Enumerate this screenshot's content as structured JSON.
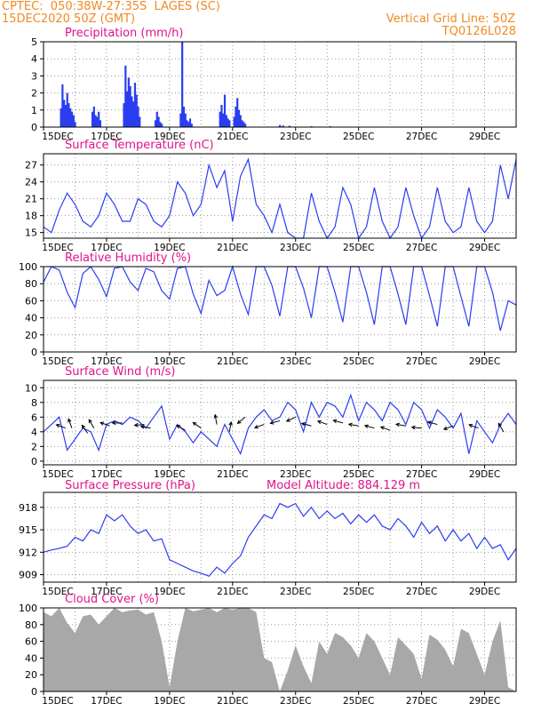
{
  "header": {
    "line1_left": "CPTEC:  050:38W-27:35S  LAGES (SC)",
    "line2_left": "15DEC2020 50Z (GMT)",
    "line1_right": "Vertical Grid Line: 50Z",
    "line2_right": "TQ0126L028"
  },
  "colors": {
    "header": "#f08a24",
    "title": "#e0138c",
    "line": "#2a3ef0",
    "bar": "#2a3ef0",
    "cloud": "#a8a8a8",
    "grid": "#9a9a9a"
  },
  "x_axis": {
    "start": "15DEC2020",
    "end": "30DEC2020",
    "day_range": [
      0,
      15
    ],
    "tick_days": [
      0,
      2,
      4,
      6,
      8,
      10,
      12,
      14
    ],
    "tick_labels": [
      "15DEC",
      "17DEC",
      "19DEC",
      "21DEC",
      "23DEC",
      "25DEC",
      "27DEC",
      "29DEC"
    ],
    "grid_every_days": 1
  },
  "chart_data": [
    {
      "id": "precip",
      "type": "bar",
      "title": "Precipitation (mm/h)",
      "ylim": [
        0,
        5
      ],
      "yticks": [
        0,
        1,
        2,
        3,
        4,
        5
      ],
      "x_days": [
        0.55,
        0.6,
        0.65,
        0.7,
        0.75,
        0.8,
        0.85,
        0.9,
        0.95,
        1.0,
        1.55,
        1.6,
        1.65,
        1.7,
        1.75,
        1.8,
        2.55,
        2.6,
        2.65,
        2.7,
        2.75,
        2.8,
        2.85,
        2.9,
        2.95,
        3.0,
        3.05,
        3.55,
        3.6,
        3.65,
        3.7,
        3.75,
        4.35,
        4.4,
        4.45,
        4.5,
        4.55,
        4.6,
        4.65,
        4.7,
        5.6,
        5.65,
        5.7,
        5.75,
        5.8,
        5.85,
        5.9,
        6.05,
        6.1,
        6.15,
        6.2,
        6.25,
        6.3,
        6.35,
        6.4,
        7.5,
        7.6,
        7.8,
        8.5,
        9.1
      ],
      "values": [
        1.1,
        2.5,
        1.6,
        1.3,
        2.0,
        1.4,
        1.1,
        0.9,
        0.7,
        0.3,
        0.9,
        1.2,
        0.7,
        0.6,
        0.9,
        0.4,
        1.4,
        3.6,
        2.1,
        2.9,
        2.4,
        1.8,
        1.5,
        2.6,
        1.9,
        1.2,
        0.6,
        0.4,
        0.9,
        0.6,
        0.3,
        0.2,
        0.8,
        5.0,
        1.2,
        0.8,
        0.4,
        0.3,
        0.5,
        0.2,
        0.9,
        1.3,
        0.8,
        1.9,
        0.7,
        0.5,
        0.4,
        0.6,
        1.2,
        1.7,
        1.0,
        0.7,
        0.4,
        0.3,
        0.2,
        0.12,
        0.1,
        0.08,
        0.05,
        0.05
      ]
    },
    {
      "id": "temp",
      "type": "line",
      "title": "Surface Temperature (nC)",
      "ylim": [
        14,
        29
      ],
      "yticks": [
        15,
        18,
        21,
        24,
        27
      ],
      "x_days": [
        0,
        0.25,
        0.5,
        0.75,
        1,
        1.25,
        1.5,
        1.75,
        2,
        2.25,
        2.5,
        2.75,
        3,
        3.25,
        3.5,
        3.75,
        4,
        4.25,
        4.5,
        4.75,
        5,
        5.25,
        5.5,
        5.75,
        6,
        6.25,
        6.5,
        6.75,
        7,
        7.25,
        7.5,
        7.75,
        8,
        8.25,
        8.5,
        8.75,
        9,
        9.25,
        9.5,
        9.75,
        10,
        10.25,
        10.5,
        10.75,
        11,
        11.25,
        11.5,
        11.75,
        12,
        12.25,
        12.5,
        12.75,
        13,
        13.25,
        13.5,
        13.75,
        14,
        14.25,
        14.5,
        14.75,
        15
      ],
      "values": [
        16,
        15,
        19,
        22,
        20,
        17,
        16,
        18,
        22,
        20,
        17,
        17,
        21,
        20,
        17,
        16,
        18,
        24,
        22,
        18,
        20,
        27,
        23,
        26,
        17,
        25,
        28,
        20,
        18,
        15,
        20,
        15,
        14,
        14,
        22,
        17,
        14,
        16,
        23,
        20,
        14,
        16,
        23,
        17,
        14,
        16,
        23,
        18,
        14,
        16,
        23,
        17,
        15,
        16,
        23,
        17,
        15,
        17,
        27,
        21,
        28
      ]
    },
    {
      "id": "rh",
      "type": "line",
      "title": "Relative Humidity (%)",
      "ylim": [
        0,
        100
      ],
      "yticks": [
        0,
        20,
        40,
        60,
        80,
        100
      ],
      "x_days": [
        0,
        0.25,
        0.5,
        0.75,
        1,
        1.25,
        1.5,
        1.75,
        2,
        2.25,
        2.5,
        2.75,
        3,
        3.25,
        3.5,
        3.75,
        4,
        4.25,
        4.5,
        4.75,
        5,
        5.25,
        5.5,
        5.75,
        6,
        6.25,
        6.5,
        6.75,
        7,
        7.25,
        7.5,
        7.75,
        8,
        8.25,
        8.5,
        8.75,
        9,
        9.25,
        9.5,
        9.75,
        10,
        10.25,
        10.5,
        10.75,
        11,
        11.25,
        11.5,
        11.75,
        12,
        12.25,
        12.5,
        12.75,
        13,
        13.25,
        13.5,
        13.75,
        14,
        14.25,
        14.5,
        14.75,
        15
      ],
      "values": [
        82,
        100,
        96,
        70,
        52,
        92,
        100,
        85,
        65,
        98,
        100,
        82,
        72,
        98,
        94,
        72,
        62,
        98,
        100,
        68,
        45,
        84,
        66,
        72,
        100,
        68,
        44,
        100,
        100,
        78,
        42,
        100,
        100,
        75,
        40,
        100,
        100,
        70,
        35,
        100,
        100,
        70,
        32,
        100,
        100,
        68,
        32,
        100,
        100,
        66,
        30,
        100,
        100,
        65,
        30,
        100,
        100,
        70,
        25,
        60,
        55
      ]
    },
    {
      "id": "wind",
      "type": "line",
      "title": "Surface Wind (m/s)",
      "ylim": [
        -0.5,
        11
      ],
      "yticks": [
        0,
        2,
        4,
        6,
        8,
        10
      ],
      "x_days": [
        0,
        0.25,
        0.5,
        0.75,
        1,
        1.25,
        1.5,
        1.75,
        2,
        2.25,
        2.5,
        2.75,
        3,
        3.25,
        3.5,
        3.75,
        4,
        4.25,
        4.5,
        4.75,
        5,
        5.25,
        5.5,
        5.75,
        6,
        6.25,
        6.5,
        6.75,
        7,
        7.25,
        7.5,
        7.75,
        8,
        8.25,
        8.5,
        8.75,
        9,
        9.25,
        9.5,
        9.75,
        10,
        10.25,
        10.5,
        10.75,
        11,
        11.25,
        11.5,
        11.75,
        12,
        12.25,
        12.5,
        12.75,
        13,
        13.25,
        13.5,
        13.75,
        14,
        14.25,
        14.5,
        14.75,
        15
      ],
      "values": [
        4,
        5,
        6,
        1.5,
        3,
        4.5,
        4,
        1.5,
        5,
        5.5,
        5,
        6,
        5.5,
        4.5,
        6,
        7.5,
        3,
        5,
        4,
        2.5,
        4,
        3,
        2,
        5,
        3,
        1,
        4.5,
        6,
        7,
        5.5,
        6,
        8,
        7,
        4,
        8,
        6,
        8,
        7.5,
        6,
        9,
        5.5,
        8,
        7,
        5.5,
        8,
        7,
        5,
        8,
        7,
        4.5,
        7,
        6,
        4.5,
        6.5,
        1,
        5.5,
        4,
        2.5,
        5,
        6.5,
        5
      ]
    },
    {
      "id": "pres",
      "type": "line",
      "title": "Surface Pressure (hPa)",
      "ylim": [
        908,
        920
      ],
      "yticks": [
        909,
        912,
        915,
        918
      ],
      "x_days": [
        0,
        0.25,
        0.5,
        0.75,
        1,
        1.25,
        1.5,
        1.75,
        2,
        2.25,
        2.5,
        2.75,
        3,
        3.25,
        3.5,
        3.75,
        4,
        4.25,
        4.5,
        4.75,
        5,
        5.25,
        5.5,
        5.75,
        6,
        6.25,
        6.5,
        6.75,
        7,
        7.25,
        7.5,
        7.75,
        8,
        8.25,
        8.5,
        8.75,
        9,
        9.25,
        9.5,
        9.75,
        10,
        10.25,
        10.5,
        10.75,
        11,
        11.25,
        11.5,
        11.75,
        12,
        12.25,
        12.5,
        12.75,
        13,
        13.25,
        13.5,
        13.75,
        14,
        14.25,
        14.5,
        14.75,
        15
      ],
      "values": [
        912,
        912.3,
        912.5,
        912.8,
        914,
        913.5,
        915,
        914.5,
        917,
        916.2,
        917,
        915.5,
        914.5,
        915,
        913.5,
        913.8,
        911,
        910.5,
        910,
        909.5,
        909.2,
        908.8,
        910,
        909.2,
        910.5,
        911.5,
        914,
        915.5,
        917,
        916.5,
        918.5,
        918,
        918.5,
        916.8,
        918,
        916.5,
        917.5,
        916.5,
        917.2,
        915.8,
        917,
        916,
        917,
        915.5,
        915,
        916.5,
        915.5,
        914,
        916,
        914.5,
        915.5,
        913.5,
        915,
        913.5,
        914.5,
        912.5,
        914,
        912.5,
        913,
        911,
        912.5
      ]
    },
    {
      "id": "cloud",
      "type": "area",
      "title": "Cloud Cover (%)",
      "ylim": [
        0,
        100
      ],
      "yticks": [
        0,
        20,
        40,
        60,
        80,
        100
      ],
      "x_days": [
        0,
        0.25,
        0.5,
        0.75,
        1,
        1.25,
        1.5,
        1.75,
        2,
        2.25,
        2.5,
        2.75,
        3,
        3.25,
        3.5,
        3.75,
        4,
        4.25,
        4.5,
        4.75,
        5,
        5.25,
        5.5,
        5.75,
        6,
        6.25,
        6.5,
        6.75,
        7,
        7.25,
        7.5,
        7.75,
        8,
        8.25,
        8.5,
        8.75,
        9,
        9.25,
        9.5,
        9.75,
        10,
        10.25,
        10.5,
        10.75,
        11,
        11.25,
        11.5,
        11.75,
        12,
        12.25,
        12.5,
        12.75,
        13,
        13.25,
        13.5,
        13.75,
        14,
        14.25,
        14.5,
        14.75,
        15
      ],
      "values": [
        95,
        90,
        100,
        82,
        70,
        90,
        92,
        80,
        90,
        100,
        95,
        97,
        98,
        92,
        95,
        60,
        5,
        60,
        100,
        96,
        98,
        100,
        95,
        100,
        98,
        100,
        100,
        95,
        40,
        35,
        0,
        25,
        55,
        30,
        10,
        60,
        45,
        70,
        65,
        55,
        40,
        70,
        60,
        40,
        20,
        65,
        55,
        45,
        15,
        68,
        62,
        50,
        30,
        75,
        70,
        45,
        20,
        60,
        85,
        5,
        0
      ]
    }
  ],
  "wind_vectors": [
    {
      "x_day": 0.7,
      "y": 4.5,
      "angle_deg": 200
    },
    {
      "x_day": 0.9,
      "y": 4.5,
      "angle_deg": 250
    },
    {
      "x_day": 1.4,
      "y": 3.8,
      "angle_deg": 235
    },
    {
      "x_day": 1.6,
      "y": 4.5,
      "angle_deg": 240
    },
    {
      "x_day": 2.1,
      "y": 4.8,
      "angle_deg": 200
    },
    {
      "x_day": 2.5,
      "y": 5.2,
      "angle_deg": 180
    },
    {
      "x_day": 3.2,
      "y": 5.0,
      "angle_deg": 175
    },
    {
      "x_day": 3.4,
      "y": 4.5,
      "angle_deg": 190
    },
    {
      "x_day": 4.5,
      "y": 4.2,
      "angle_deg": 210
    },
    {
      "x_day": 5.0,
      "y": 4.5,
      "angle_deg": 215
    },
    {
      "x_day": 5.5,
      "y": 5.0,
      "angle_deg": 260
    },
    {
      "x_day": 5.9,
      "y": 4.0,
      "angle_deg": 280
    },
    {
      "x_day": 6.4,
      "y": 6.0,
      "angle_deg": 140
    },
    {
      "x_day": 7.0,
      "y": 5.0,
      "angle_deg": 160
    },
    {
      "x_day": 7.5,
      "y": 5.5,
      "angle_deg": 165
    },
    {
      "x_day": 8.0,
      "y": 6.0,
      "angle_deg": 155
    },
    {
      "x_day": 8.5,
      "y": 4.8,
      "angle_deg": 195
    },
    {
      "x_day": 9.0,
      "y": 5.0,
      "angle_deg": 200
    },
    {
      "x_day": 9.5,
      "y": 5.2,
      "angle_deg": 195
    },
    {
      "x_day": 10.0,
      "y": 4.8,
      "angle_deg": 190
    },
    {
      "x_day": 10.5,
      "y": 4.5,
      "angle_deg": 195
    },
    {
      "x_day": 11.0,
      "y": 4.2,
      "angle_deg": 200
    },
    {
      "x_day": 11.5,
      "y": 4.8,
      "angle_deg": 190
    },
    {
      "x_day": 12.0,
      "y": 4.5,
      "angle_deg": 185
    },
    {
      "x_day": 12.5,
      "y": 5.0,
      "angle_deg": 195
    },
    {
      "x_day": 13.0,
      "y": 4.8,
      "angle_deg": 160
    },
    {
      "x_day": 13.8,
      "y": 4.5,
      "angle_deg": 200
    },
    {
      "x_day": 14.6,
      "y": 4.0,
      "angle_deg": 240
    }
  ],
  "annotations": {
    "model_altitude": "Model Altitude: 884.129 m"
  }
}
